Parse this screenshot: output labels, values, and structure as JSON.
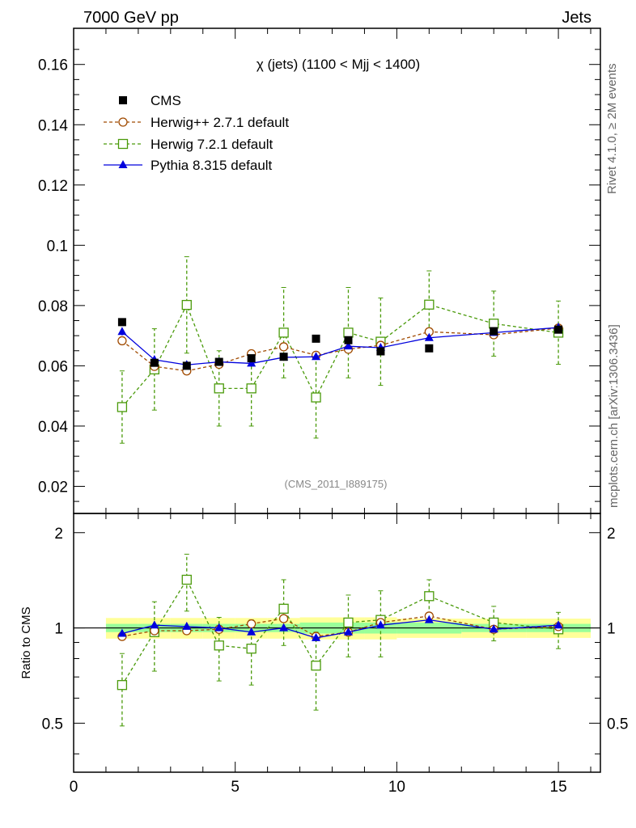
{
  "header": {
    "left": "7000 GeV pp",
    "right": "Jets",
    "side_top": "Rivet 4.1.0, ≥ 2M events",
    "side_bottom": "mcplots.cern.ch [arXiv:1306.3436]"
  },
  "chart_data": {
    "type": "line",
    "title": "χ (jets) (1100 < Mjj < 1400)",
    "watermark": "(CMS_2011_I889175)",
    "xlabel": "",
    "ylabel": "",
    "xlim": [
      0,
      16.3
    ],
    "ylim": [
      0.011,
      0.172
    ],
    "x_ticks": [
      0,
      5,
      10,
      15
    ],
    "y_ticks": [
      0.02,
      0.04,
      0.06,
      0.08,
      0.1,
      0.12,
      0.14,
      0.16
    ],
    "y_tick_labels": [
      "0.02",
      "0.04",
      "0.06",
      "0.08",
      "0.1",
      "0.12",
      "0.14",
      "0.16"
    ],
    "x": [
      1.5,
      2.5,
      3.5,
      4.5,
      5.5,
      6.5,
      7.5,
      8.5,
      9.5,
      11,
      13,
      15
    ],
    "bin_edges": [
      1,
      2,
      3,
      4,
      5,
      6,
      7,
      8,
      9,
      10,
      12,
      14,
      16
    ],
    "legend_position": "top-left",
    "series": [
      {
        "name": "CMS",
        "color": "#000000",
        "marker": "square-filled",
        "line": "none",
        "values": [
          0.0745,
          0.061,
          0.06,
          0.0613,
          0.0625,
          0.063,
          0.069,
          0.0685,
          0.0648,
          0.0658,
          0.0715,
          0.072
        ]
      },
      {
        "name": "Herwig++ 2.7.1 default",
        "color": "#a04a00",
        "marker": "circle-open",
        "line": "dashed",
        "values": [
          0.0683,
          0.0598,
          0.0583,
          0.0605,
          0.064,
          0.0663,
          0.0635,
          0.0655,
          0.0668,
          0.0713,
          0.0703,
          0.0725
        ],
        "err": [
          0,
          0,
          0,
          0,
          0,
          0,
          0,
          0,
          0,
          0,
          0,
          0
        ]
      },
      {
        "name": "Herwig 7.2.1 default",
        "color": "#4a9a0a",
        "marker": "square-open",
        "line": "dashed",
        "values": [
          0.0463,
          0.0588,
          0.0802,
          0.0525,
          0.0525,
          0.071,
          0.0495,
          0.071,
          0.068,
          0.0803,
          0.074,
          0.071
        ],
        "err": [
          0.012,
          0.0135,
          0.016,
          0.0125,
          0.0125,
          0.015,
          0.0135,
          0.015,
          0.0145,
          0.0112,
          0.0108,
          0.0105
        ]
      },
      {
        "name": "Pythia 8.315 default",
        "color": "#0000dd",
        "marker": "triangle-filled",
        "line": "solid",
        "values": [
          0.0713,
          0.062,
          0.0603,
          0.0613,
          0.0608,
          0.0628,
          0.063,
          0.0665,
          0.066,
          0.0693,
          0.071,
          0.0727
        ],
        "err": [
          0.0012,
          0.0012,
          0.0012,
          0.001,
          0.001,
          0.001,
          0.001,
          0.001,
          0.001,
          0.001,
          0.001,
          0.001
        ]
      }
    ],
    "ratio": {
      "ylabel": "Ratio to CMS",
      "ylim": [
        0.35,
        2.3
      ],
      "y_ticks": [
        0.5,
        1,
        2
      ],
      "y_tick_labels": [
        "0.5",
        "1",
        "2"
      ],
      "band_inner": [
        0.03,
        0.03,
        0.03,
        0.03,
        0.03,
        0.03,
        0.04,
        0.04,
        0.04,
        0.04,
        0.03,
        0.03
      ],
      "band_outer": [
        0.075,
        0.075,
        0.075,
        0.075,
        0.075,
        0.075,
        0.08,
        0.08,
        0.08,
        0.07,
        0.07,
        0.07
      ],
      "series": [
        {
          "name": "Herwig++ 2.7.1 default",
          "values": [
            0.94,
            0.98,
            0.98,
            0.99,
            1.03,
            1.07,
            0.94,
            0.97,
            1.04,
            1.09,
            0.99,
            1.01
          ],
          "err": [
            0,
            0,
            0,
            0,
            0,
            0,
            0,
            0,
            0,
            0,
            0,
            0
          ]
        },
        {
          "name": "Herwig 7.2.1 default",
          "values": [
            0.66,
            0.97,
            1.42,
            0.88,
            0.86,
            1.15,
            0.76,
            1.04,
            1.06,
            1.26,
            1.04,
            0.99
          ],
          "err": [
            0.17,
            0.24,
            0.29,
            0.2,
            0.2,
            0.27,
            0.21,
            0.23,
            0.25,
            0.16,
            0.13,
            0.13
          ]
        },
        {
          "name": "Pythia 8.315 default",
          "values": [
            0.96,
            1.02,
            1.01,
            1.0,
            0.97,
            1.0,
            0.93,
            0.97,
            1.02,
            1.06,
            0.99,
            1.02
          ],
          "err": [
            0.01,
            0.01,
            0.01,
            0.01,
            0.01,
            0.01,
            0.01,
            0.01,
            0.01,
            0.01,
            0.01,
            0.01
          ]
        }
      ]
    }
  }
}
